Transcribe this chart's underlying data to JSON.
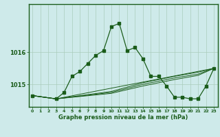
{
  "xlabel": "Graphe pression niveau de la mer (hPa)",
  "background_color": "#ceeaea",
  "grid_color": "#aaccbb",
  "line_color": "#1a5c1a",
  "xlim": [
    -0.5,
    23.5
  ],
  "ylim": [
    1014.3,
    1017.5
  ],
  "yticks": [
    1015,
    1016
  ],
  "xticks": [
    0,
    1,
    2,
    3,
    4,
    5,
    6,
    7,
    8,
    9,
    10,
    11,
    12,
    13,
    14,
    15,
    16,
    17,
    18,
    19,
    20,
    21,
    22,
    23
  ],
  "series1": [
    [
      0,
      1014.65
    ],
    [
      3,
      1014.55
    ],
    [
      4,
      1014.75
    ],
    [
      5,
      1015.25
    ],
    [
      6,
      1015.4
    ],
    [
      7,
      1015.65
    ],
    [
      8,
      1015.9
    ],
    [
      9,
      1016.05
    ],
    [
      10,
      1016.8
    ],
    [
      11,
      1016.9
    ],
    [
      12,
      1016.05
    ],
    [
      13,
      1016.15
    ],
    [
      14,
      1015.8
    ],
    [
      15,
      1015.25
    ],
    [
      16,
      1015.25
    ],
    [
      17,
      1014.95
    ],
    [
      18,
      1014.6
    ],
    [
      19,
      1014.6
    ],
    [
      20,
      1014.55
    ],
    [
      21,
      1014.55
    ],
    [
      22,
      1014.95
    ],
    [
      23,
      1015.5
    ]
  ],
  "series2": [
    [
      0,
      1014.65
    ],
    [
      3,
      1014.55
    ],
    [
      23,
      1015.5
    ]
  ],
  "series3": [
    [
      0,
      1014.65
    ],
    [
      3,
      1014.55
    ],
    [
      10,
      1014.78
    ],
    [
      14,
      1015.05
    ],
    [
      18,
      1015.25
    ],
    [
      21,
      1015.38
    ],
    [
      23,
      1015.5
    ]
  ],
  "series4": [
    [
      0,
      1014.65
    ],
    [
      3,
      1014.55
    ],
    [
      10,
      1014.75
    ],
    [
      14,
      1015.0
    ],
    [
      18,
      1015.2
    ],
    [
      21,
      1015.32
    ],
    [
      23,
      1015.5
    ]
  ],
  "series5": [
    [
      0,
      1014.65
    ],
    [
      3,
      1014.55
    ],
    [
      10,
      1014.72
    ],
    [
      14,
      1014.95
    ],
    [
      18,
      1015.15
    ],
    [
      21,
      1015.28
    ],
    [
      23,
      1015.5
    ]
  ]
}
